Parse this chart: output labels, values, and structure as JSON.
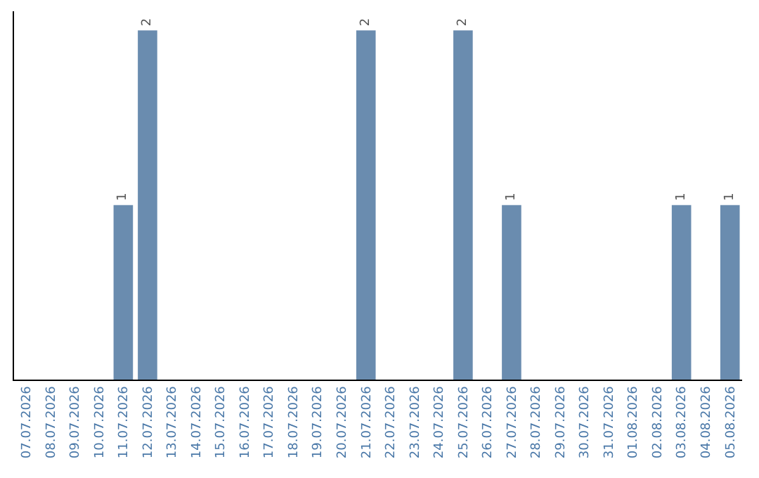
{
  "chart_data": {
    "type": "bar",
    "categories": [
      "07.07.2026",
      "08.07.2026",
      "09.07.2026",
      "10.07.2026",
      "11.07.2026",
      "12.07.2026",
      "13.07.2026",
      "14.07.2026",
      "15.07.2026",
      "16.07.2026",
      "17.07.2026",
      "18.07.2026",
      "19.07.2026",
      "20.07.2026",
      "21.07.2026",
      "22.07.2026",
      "23.07.2026",
      "24.07.2026",
      "25.07.2026",
      "26.07.2026",
      "27.07.2026",
      "28.07.2026",
      "29.07.2026",
      "30.07.2026",
      "31.07.2026",
      "01.08.2026",
      "02.08.2026",
      "03.08.2026",
      "04.08.2026",
      "05.08.2026"
    ],
    "values": [
      0,
      0,
      0,
      0,
      1,
      2,
      0,
      0,
      0,
      0,
      0,
      0,
      0,
      0,
      2,
      0,
      0,
      0,
      2,
      0,
      1,
      0,
      0,
      0,
      0,
      0,
      0,
      1,
      0,
      1
    ],
    "value_labels": [
      null,
      null,
      null,
      null,
      "1",
      "2",
      null,
      null,
      null,
      null,
      null,
      null,
      null,
      null,
      "2",
      null,
      null,
      null,
      "2",
      null,
      "1",
      null,
      null,
      null,
      null,
      null,
      null,
      "1",
      null,
      "1"
    ],
    "color": "#6a8caf",
    "grid": false
  }
}
